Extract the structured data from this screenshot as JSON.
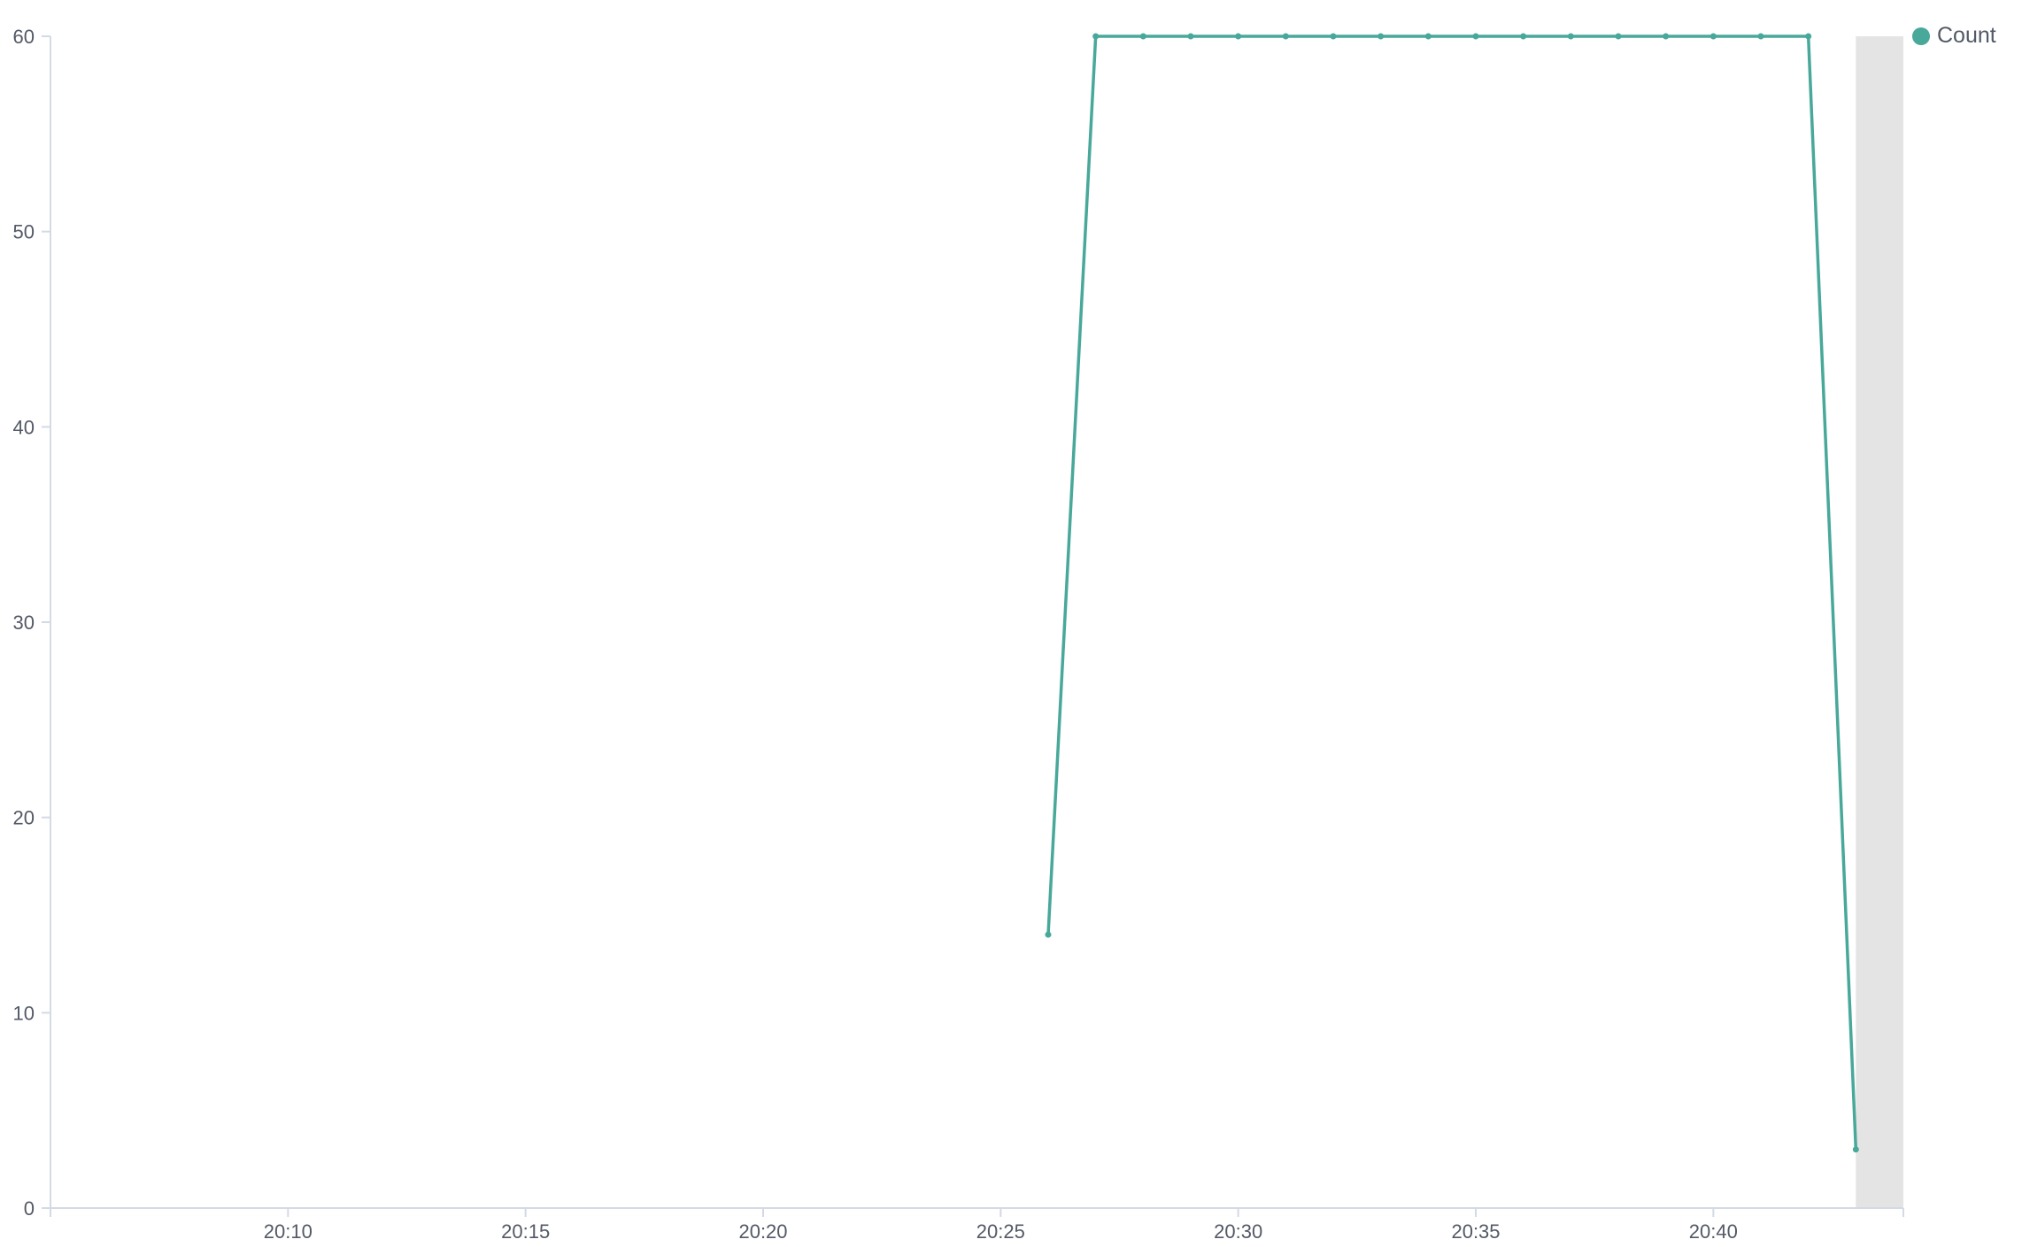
{
  "chart_data": {
    "type": "line",
    "title": "",
    "xlabel": "",
    "ylabel": "",
    "x_range": [
      "20:05",
      "20:44"
    ],
    "x_ticks": [
      "20:10",
      "20:15",
      "20:20",
      "20:25",
      "20:30",
      "20:35",
      "20:40"
    ],
    "ylim": [
      0,
      60
    ],
    "y_ticks": [
      0,
      10,
      20,
      30,
      40,
      50,
      60
    ],
    "grid": false,
    "legend": {
      "position": "top-right"
    },
    "current_bucket_shading": {
      "from": "20:43",
      "to": "20:44"
    },
    "series": [
      {
        "name": "Count",
        "color": "#48a89a",
        "points": [
          {
            "x": "20:26",
            "y": 14
          },
          {
            "x": "20:27",
            "y": 60
          },
          {
            "x": "20:28",
            "y": 60
          },
          {
            "x": "20:29",
            "y": 60
          },
          {
            "x": "20:30",
            "y": 60
          },
          {
            "x": "20:31",
            "y": 60
          },
          {
            "x": "20:32",
            "y": 60
          },
          {
            "x": "20:33",
            "y": 60
          },
          {
            "x": "20:34",
            "y": 60
          },
          {
            "x": "20:35",
            "y": 60
          },
          {
            "x": "20:36",
            "y": 60
          },
          {
            "x": "20:37",
            "y": 60
          },
          {
            "x": "20:38",
            "y": 60
          },
          {
            "x": "20:39",
            "y": 60
          },
          {
            "x": "20:40",
            "y": 60
          },
          {
            "x": "20:41",
            "y": 60
          },
          {
            "x": "20:42",
            "y": 60
          },
          {
            "x": "20:43",
            "y": 3
          }
        ]
      }
    ]
  },
  "colors": {
    "axis": "#d3dae6",
    "tick_text": "#535966",
    "shading": "#e4e4e4"
  }
}
